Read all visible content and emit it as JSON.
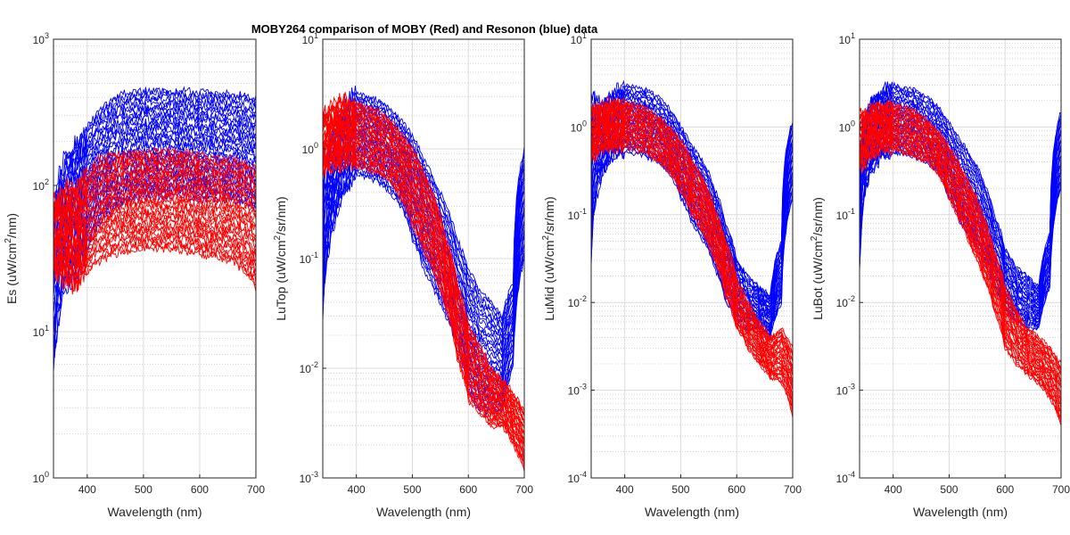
{
  "figure": {
    "title": "MOBY264 comparison of MOBY (Red) and Resonon (blue) data"
  },
  "chart_data": [
    {
      "type": "line",
      "ylabel": "Es (uW/cm^2/nm)",
      "ylabel_parts": [
        "Es (uW/cm",
        "2",
        "/nm)"
      ],
      "xlabel": "Wavelength (nm)",
      "xlim": [
        340,
        700
      ],
      "ylim": [
        1,
        1000
      ],
      "yscale": "log",
      "grid": true,
      "xticks": [
        400,
        500,
        600,
        700
      ],
      "yticks": [
        {
          "exp": 0,
          "value": 1
        },
        {
          "exp": 1,
          "value": 10
        },
        {
          "exp": 2,
          "value": 100
        },
        {
          "exp": 3,
          "value": 1000
        }
      ],
      "series": [
        {
          "color": "#0000ff",
          "x": [
            340,
            360,
            380,
            400,
            420,
            440,
            460,
            480,
            500,
            520,
            540,
            560,
            580,
            600,
            620,
            640,
            660,
            680,
            700
          ],
          "y_range": [
            [
              5,
              80
            ],
            [
              20,
              150
            ],
            [
              25,
              200
            ],
            [
              35,
              250
            ],
            [
              55,
              320
            ],
            [
              65,
              380
            ],
            [
              75,
              420
            ],
            [
              80,
              440
            ],
            [
              85,
              440
            ],
            [
              85,
              450
            ],
            [
              85,
              450
            ],
            [
              85,
              440
            ],
            [
              85,
              440
            ],
            [
              80,
              430
            ],
            [
              80,
              430
            ],
            [
              80,
              420
            ],
            [
              80,
              420
            ],
            [
              75,
              410
            ],
            [
              70,
              400
            ]
          ]
        },
        {
          "color": "#ff0000",
          "x": [
            340,
            360,
            380,
            400,
            420,
            440,
            460,
            480,
            500,
            520,
            540,
            560,
            580,
            600,
            620,
            640,
            660,
            680,
            700
          ],
          "y_range": [
            [
              25,
              80
            ],
            [
              22,
              90
            ],
            [
              20,
              100
            ],
            [
              25,
              120
            ],
            [
              30,
              150
            ],
            [
              33,
              160
            ],
            [
              35,
              165
            ],
            [
              36,
              165
            ],
            [
              37,
              165
            ],
            [
              37,
              170
            ],
            [
              37,
              170
            ],
            [
              36,
              170
            ],
            [
              35,
              165
            ],
            [
              34,
              160
            ],
            [
              33,
              155
            ],
            [
              32,
              150
            ],
            [
              30,
              150
            ],
            [
              25,
              140
            ],
            [
              20,
              130
            ]
          ]
        }
      ]
    },
    {
      "type": "line",
      "ylabel": "LuTop (uW/cm^2/sr/nm)",
      "ylabel_parts": [
        "LuTop (uW/cm",
        "2",
        "/sr/nm)"
      ],
      "xlabel": "Wavelength (nm)",
      "xlim": [
        340,
        700
      ],
      "ylim": [
        0.001,
        10
      ],
      "yscale": "log",
      "grid": true,
      "xticks": [
        400,
        500,
        600,
        700
      ],
      "yticks": [
        {
          "exp": -3,
          "value": 0.001
        },
        {
          "exp": -2,
          "value": 0.01
        },
        {
          "exp": -1,
          "value": 0.1
        },
        {
          "exp": 0,
          "value": 1
        },
        {
          "exp": 1,
          "value": 10
        }
      ],
      "series": [
        {
          "color": "#0000ff",
          "x": [
            340,
            360,
            380,
            400,
            420,
            440,
            460,
            480,
            500,
            520,
            540,
            560,
            580,
            600,
            620,
            640,
            660,
            680,
            700
          ],
          "y_range": [
            [
              0.03,
              0.5
            ],
            [
              0.2,
              1.5
            ],
            [
              0.4,
              2.5
            ],
            [
              0.6,
              3.3
            ],
            [
              0.55,
              3.0
            ],
            [
              0.5,
              2.8
            ],
            [
              0.4,
              2.3
            ],
            [
              0.3,
              1.8
            ],
            [
              0.15,
              1.3
            ],
            [
              0.08,
              0.8
            ],
            [
              0.05,
              0.5
            ],
            [
              0.03,
              0.3
            ],
            [
              0.015,
              0.15
            ],
            [
              0.006,
              0.08
            ],
            [
              0.004,
              0.05
            ],
            [
              0.004,
              0.04
            ],
            [
              0.004,
              0.03
            ],
            [
              0.01,
              0.06
            ],
            [
              0.1,
              1.0
            ]
          ]
        },
        {
          "color": "#ff0000",
          "x": [
            340,
            360,
            380,
            400,
            420,
            440,
            460,
            480,
            500,
            520,
            540,
            560,
            580,
            600,
            620,
            640,
            660,
            680,
            700
          ],
          "y_range": [
            [
              0.6,
              2.0
            ],
            [
              0.7,
              2.5
            ],
            [
              0.75,
              2.8
            ],
            [
              0.7,
              2.6
            ],
            [
              0.65,
              2.4
            ],
            [
              0.6,
              2.2
            ],
            [
              0.5,
              1.8
            ],
            [
              0.35,
              1.4
            ],
            [
              0.2,
              1.0
            ],
            [
              0.12,
              0.6
            ],
            [
              0.07,
              0.35
            ],
            [
              0.035,
              0.15
            ],
            [
              0.012,
              0.06
            ],
            [
              0.005,
              0.025
            ],
            [
              0.004,
              0.016
            ],
            [
              0.003,
              0.01
            ],
            [
              0.003,
              0.008
            ],
            [
              0.002,
              0.006
            ],
            [
              0.0012,
              0.004
            ]
          ]
        }
      ]
    },
    {
      "type": "line",
      "ylabel": "LuMid (uW/cm^2/sr/nm)",
      "ylabel_parts": [
        "LuMid (uW/cm",
        "2",
        "/sr/nm)"
      ],
      "xlabel": "Wavelength (nm)",
      "xlim": [
        340,
        700
      ],
      "ylim": [
        0.0001,
        10
      ],
      "yscale": "log",
      "grid": true,
      "xticks": [
        400,
        500,
        600,
        700
      ],
      "yticks": [
        {
          "exp": -4,
          "value": 0.0001
        },
        {
          "exp": -3,
          "value": 0.001
        },
        {
          "exp": -2,
          "value": 0.01
        },
        {
          "exp": -1,
          "value": 0.1
        },
        {
          "exp": 0,
          "value": 1
        },
        {
          "exp": 1,
          "value": 10
        }
      ],
      "series": [
        {
          "color": "#0000ff",
          "x": [
            340,
            360,
            380,
            400,
            420,
            440,
            460,
            480,
            500,
            520,
            540,
            560,
            580,
            600,
            620,
            640,
            660,
            680,
            700
          ],
          "y_range": [
            [
              0.03,
              2.5
            ],
            [
              0.3,
              1.8
            ],
            [
              0.45,
              2.4
            ],
            [
              0.5,
              3.0
            ],
            [
              0.5,
              2.8
            ],
            [
              0.45,
              2.6
            ],
            [
              0.4,
              2.2
            ],
            [
              0.3,
              1.6
            ],
            [
              0.15,
              1.0
            ],
            [
              0.08,
              0.6
            ],
            [
              0.05,
              0.4
            ],
            [
              0.025,
              0.2
            ],
            [
              0.01,
              0.08
            ],
            [
              0.006,
              0.03
            ],
            [
              0.005,
              0.02
            ],
            [
              0.005,
              0.015
            ],
            [
              0.004,
              0.012
            ],
            [
              0.01,
              0.05
            ],
            [
              0.15,
              1.2
            ]
          ]
        },
        {
          "color": "#ff0000",
          "x": [
            340,
            360,
            380,
            400,
            420,
            440,
            460,
            480,
            500,
            520,
            540,
            560,
            580,
            600,
            620,
            640,
            660,
            680,
            700
          ],
          "y_range": [
            [
              0.45,
              1.5
            ],
            [
              0.55,
              1.8
            ],
            [
              0.6,
              2.0
            ],
            [
              0.6,
              1.9
            ],
            [
              0.55,
              1.8
            ],
            [
              0.5,
              1.6
            ],
            [
              0.4,
              1.3
            ],
            [
              0.3,
              1.0
            ],
            [
              0.18,
              0.7
            ],
            [
              0.1,
              0.4
            ],
            [
              0.06,
              0.25
            ],
            [
              0.03,
              0.12
            ],
            [
              0.012,
              0.05
            ],
            [
              0.005,
              0.018
            ],
            [
              0.003,
              0.01
            ],
            [
              0.002,
              0.006
            ],
            [
              0.0014,
              0.004
            ],
            [
              0.0012,
              0.005
            ],
            [
              0.0005,
              0.003
            ]
          ]
        }
      ]
    },
    {
      "type": "line",
      "ylabel": "LuBot (uW/cm^2/sr/nm)",
      "ylabel_parts": [
        "LuBot (uW/cm",
        "2",
        "/sr/nm)"
      ],
      "xlabel": "Wavelength (nm)",
      "xlim": [
        340,
        700
      ],
      "ylim": [
        0.0001,
        10
      ],
      "yscale": "log",
      "grid": true,
      "xticks": [
        400,
        500,
        600,
        700
      ],
      "yticks": [
        {
          "exp": -4,
          "value": 0.0001
        },
        {
          "exp": -3,
          "value": 0.001
        },
        {
          "exp": -2,
          "value": 0.01
        },
        {
          "exp": -1,
          "value": 0.1
        },
        {
          "exp": 0,
          "value": 1
        },
        {
          "exp": 1,
          "value": 10
        }
      ],
      "series": [
        {
          "color": "#0000ff",
          "x": [
            340,
            360,
            380,
            400,
            420,
            440,
            460,
            480,
            500,
            520,
            540,
            560,
            580,
            600,
            620,
            640,
            660,
            680,
            700
          ],
          "y_range": [
            [
              0.02,
              0.6
            ],
            [
              0.3,
              2.0
            ],
            [
              0.45,
              2.6
            ],
            [
              0.5,
              3.0
            ],
            [
              0.5,
              2.8
            ],
            [
              0.45,
              2.6
            ],
            [
              0.4,
              2.2
            ],
            [
              0.3,
              1.7
            ],
            [
              0.15,
              1.1
            ],
            [
              0.08,
              0.7
            ],
            [
              0.05,
              0.45
            ],
            [
              0.03,
              0.25
            ],
            [
              0.015,
              0.1
            ],
            [
              0.008,
              0.04
            ],
            [
              0.006,
              0.025
            ],
            [
              0.005,
              0.02
            ],
            [
              0.005,
              0.015
            ],
            [
              0.015,
              0.06
            ],
            [
              0.2,
              1.5
            ]
          ]
        },
        {
          "color": "#ff0000",
          "x": [
            340,
            360,
            380,
            400,
            420,
            440,
            460,
            480,
            500,
            520,
            540,
            560,
            580,
            600,
            620,
            640,
            660,
            680,
            700
          ],
          "y_range": [
            [
              0.3,
              1.4
            ],
            [
              0.45,
              1.6
            ],
            [
              0.55,
              1.8
            ],
            [
              0.55,
              1.8
            ],
            [
              0.5,
              1.7
            ],
            [
              0.45,
              1.5
            ],
            [
              0.4,
              1.2
            ],
            [
              0.3,
              0.9
            ],
            [
              0.15,
              0.6
            ],
            [
              0.08,
              0.35
            ],
            [
              0.04,
              0.2
            ],
            [
              0.02,
              0.1
            ],
            [
              0.008,
              0.04
            ],
            [
              0.003,
              0.015
            ],
            [
              0.002,
              0.008
            ],
            [
              0.0015,
              0.005
            ],
            [
              0.0012,
              0.004
            ],
            [
              0.0008,
              0.003
            ],
            [
              0.0004,
              0.002
            ]
          ]
        }
      ]
    }
  ]
}
